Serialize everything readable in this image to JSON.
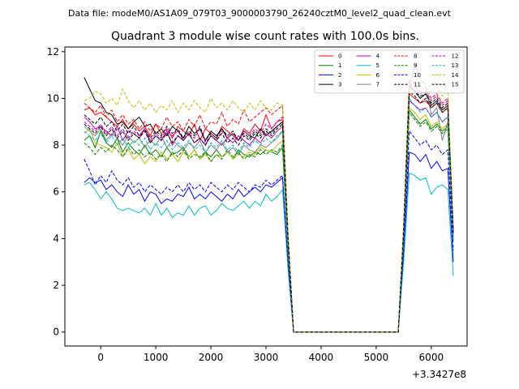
{
  "chart_data": {
    "type": "line",
    "suptitle": "Data file: modeM0/AS1A09_079T03_9000003790_26240cztM0_level2_quad_clean.evt",
    "title": "Quadrant 3 module wise count rates with 100.0s bins.",
    "xlabel": "",
    "ylabel": "",
    "x_offset_label": "+3.3427e8",
    "xlim": [
      -650,
      6650
    ],
    "ylim": [
      -0.6,
      12.2
    ],
    "xticks": [
      0,
      1000,
      2000,
      3000,
      4000,
      5000,
      6000
    ],
    "yticks": [
      0,
      2,
      4,
      6,
      8,
      10,
      12
    ],
    "legend_position": "top-right",
    "legend_columns": 4,
    "x": [
      -300,
      -200,
      -100,
      0,
      100,
      200,
      300,
      400,
      500,
      600,
      700,
      800,
      900,
      1000,
      1100,
      1200,
      1300,
      1400,
      1500,
      1600,
      1700,
      1800,
      1900,
      2000,
      2100,
      2200,
      2300,
      2400,
      2500,
      2600,
      2700,
      2800,
      2900,
      3000,
      3100,
      3200,
      3300,
      3400,
      3500,
      3600,
      3700,
      3800,
      3900,
      4000,
      4100,
      4200,
      4300,
      4400,
      4500,
      4600,
      4700,
      4800,
      4900,
      5000,
      5100,
      5200,
      5300,
      5400,
      5500,
      5600,
      5700,
      5800,
      5900,
      6000,
      6100,
      6200,
      6300,
      6400
    ],
    "series": [
      {
        "name": "0",
        "color": "#ff0000",
        "dash": "solid",
        "values": [
          9.5,
          9.6,
          9.3,
          9.4,
          9.2,
          9.0,
          8.8,
          9.1,
          8.7,
          8.9,
          8.6,
          8.8,
          8.4,
          8.9,
          8.5,
          8.7,
          8.3,
          8.8,
          8.6,
          8.4,
          8.9,
          8.2,
          8.7,
          8.5,
          8.3,
          8.8,
          8.6,
          8.4,
          8.2,
          8.7,
          8.5,
          8.9,
          8.6,
          9.3,
          8.7,
          9.0,
          9.1,
          4.0,
          0.0,
          0.0,
          0.0,
          0.0,
          0.0,
          0.0,
          0.0,
          0.0,
          0.0,
          0.0,
          0.0,
          0.0,
          0.0,
          0.0,
          0.0,
          0.0,
          0.0,
          0.0,
          0.0,
          0.0,
          4.5,
          10.2,
          10.0,
          9.8,
          9.9,
          9.6,
          9.8,
          9.4,
          9.6,
          4.3
        ]
      },
      {
        "name": "1",
        "color": "#008000",
        "dash": "solid",
        "values": [
          8.2,
          8.4,
          7.9,
          8.6,
          8.1,
          7.9,
          8.3,
          7.7,
          8.1,
          7.8,
          7.6,
          8.0,
          7.6,
          7.8,
          7.5,
          7.9,
          7.6,
          7.7,
          7.9,
          7.5,
          7.8,
          7.4,
          7.7,
          7.5,
          7.8,
          7.5,
          7.7,
          7.4,
          7.8,
          7.6,
          7.5,
          7.7,
          7.6,
          7.8,
          7.7,
          7.6,
          7.9,
          3.6,
          0.0,
          0.0,
          0.0,
          0.0,
          0.0,
          0.0,
          0.0,
          0.0,
          0.0,
          0.0,
          0.0,
          0.0,
          0.0,
          0.0,
          0.0,
          0.0,
          0.0,
          0.0,
          0.0,
          0.0,
          4.2,
          9.5,
          9.2,
          8.9,
          9.1,
          8.7,
          8.9,
          8.6,
          8.8,
          4.0
        ]
      },
      {
        "name": "2",
        "color": "#0000ff",
        "dash": "solid",
        "values": [
          6.4,
          6.6,
          6.4,
          6.5,
          6.1,
          6.3,
          6.0,
          5.8,
          6.3,
          5.9,
          6.1,
          5.6,
          6.0,
          5.9,
          5.5,
          5.7,
          5.6,
          5.9,
          5.8,
          6.2,
          5.7,
          5.9,
          5.7,
          6.0,
          5.8,
          5.6,
          5.9,
          5.7,
          6.1,
          5.8,
          6.0,
          6.2,
          6.0,
          6.3,
          6.2,
          6.4,
          6.6,
          2.9,
          0.0,
          0.0,
          0.0,
          0.0,
          0.0,
          0.0,
          0.0,
          0.0,
          0.0,
          0.0,
          0.0,
          0.0,
          0.0,
          0.0,
          0.0,
          0.0,
          0.0,
          0.0,
          0.0,
          0.0,
          3.4,
          7.7,
          7.6,
          7.3,
          7.6,
          7.0,
          7.3,
          6.9,
          7.0,
          3.0
        ]
      },
      {
        "name": "3",
        "color": "#000000",
        "dash": "solid",
        "values": [
          10.9,
          10.4,
          9.9,
          9.8,
          9.4,
          9.3,
          8.9,
          9.0,
          8.7,
          9.0,
          9.2,
          8.8,
          8.9,
          8.5,
          8.7,
          8.4,
          8.8,
          8.6,
          8.3,
          8.8,
          8.5,
          8.7,
          8.2,
          8.6,
          8.4,
          8.7,
          8.3,
          8.5,
          8.2,
          8.6,
          8.4,
          8.3,
          8.7,
          8.4,
          8.6,
          8.8,
          9.0,
          4.0,
          0.0,
          0.0,
          0.0,
          0.0,
          0.0,
          0.0,
          0.0,
          0.0,
          0.0,
          0.0,
          0.0,
          0.0,
          0.0,
          0.0,
          0.0,
          0.0,
          0.0,
          0.0,
          0.0,
          0.0,
          4.6,
          10.5,
          10.3,
          10.0,
          10.2,
          9.7,
          9.9,
          9.5,
          9.7,
          4.2
        ]
      },
      {
        "name": "4",
        "color": "#bf00bf",
        "dash": "solid",
        "values": [
          9.2,
          9.0,
          8.7,
          8.8,
          8.6,
          8.4,
          8.8,
          8.2,
          8.6,
          8.5,
          8.3,
          8.7,
          8.1,
          8.4,
          8.2,
          8.6,
          8.0,
          8.4,
          8.2,
          8.5,
          8.1,
          8.3,
          8.0,
          8.4,
          8.2,
          8.0,
          8.3,
          8.1,
          8.4,
          8.2,
          8.0,
          8.3,
          8.1,
          8.5,
          8.3,
          8.6,
          8.8,
          3.9,
          0.0,
          0.0,
          0.0,
          0.0,
          0.0,
          0.0,
          0.0,
          0.0,
          0.0,
          0.0,
          0.0,
          0.0,
          0.0,
          0.0,
          0.0,
          0.0,
          0.0,
          0.0,
          0.0,
          0.0,
          4.3,
          9.9,
          9.7,
          9.5,
          9.6,
          9.2,
          9.4,
          9.0,
          9.2,
          4.1
        ]
      },
      {
        "name": "5",
        "color": "#00bfbf",
        "dash": "solid",
        "values": [
          6.3,
          6.4,
          6.1,
          5.7,
          6.0,
          5.7,
          5.3,
          5.2,
          5.3,
          5.2,
          5.1,
          5.3,
          5.0,
          5.5,
          5.0,
          5.3,
          4.9,
          5.1,
          5.0,
          5.4,
          5.0,
          5.3,
          5.4,
          5.0,
          5.2,
          5.5,
          5.3,
          5.2,
          5.4,
          5.6,
          5.3,
          5.6,
          5.4,
          5.9,
          5.6,
          5.8,
          6.1,
          2.7,
          0.0,
          0.0,
          0.0,
          0.0,
          0.0,
          0.0,
          0.0,
          0.0,
          0.0,
          0.0,
          0.0,
          0.0,
          0.0,
          0.0,
          0.0,
          0.0,
          0.0,
          0.0,
          0.0,
          0.0,
          3.1,
          6.8,
          6.7,
          6.5,
          6.6,
          5.9,
          6.2,
          6.3,
          6.1,
          2.4
        ]
      },
      {
        "name": "6",
        "color": "#bfbf00",
        "dash": "solid",
        "values": [
          8.5,
          8.7,
          8.1,
          8.0,
          7.9,
          7.7,
          8.1,
          7.5,
          7.8,
          7.4,
          7.6,
          7.2,
          7.5,
          7.3,
          7.7,
          7.4,
          7.6,
          7.3,
          7.7,
          7.5,
          7.8,
          7.4,
          7.6,
          7.3,
          7.6,
          7.5,
          7.7,
          7.4,
          7.6,
          7.5,
          7.7,
          7.6,
          7.9,
          7.8,
          7.7,
          8.0,
          8.2,
          3.7,
          0.0,
          0.0,
          0.0,
          0.0,
          0.0,
          0.0,
          0.0,
          0.0,
          0.0,
          0.0,
          0.0,
          0.0,
          0.0,
          0.0,
          0.0,
          0.0,
          0.0,
          0.0,
          0.0,
          0.0,
          4.2,
          9.6,
          9.4,
          9.1,
          9.3,
          8.8,
          9.0,
          8.7,
          8.9,
          3.9
        ]
      },
      {
        "name": "7",
        "color": "#808080",
        "dash": "solid",
        "values": [
          8.8,
          8.6,
          8.4,
          8.7,
          8.2,
          8.5,
          8.3,
          8.0,
          8.4,
          8.1,
          8.3,
          7.9,
          8.2,
          8.0,
          8.4,
          7.9,
          8.2,
          8.0,
          7.8,
          8.1,
          7.9,
          8.2,
          7.7,
          8.0,
          7.8,
          8.1,
          7.7,
          7.9,
          7.6,
          8.0,
          7.8,
          7.7,
          8.0,
          7.9,
          8.1,
          8.3,
          8.6,
          3.8,
          0.0,
          0.0,
          0.0,
          0.0,
          0.0,
          0.0,
          0.0,
          0.0,
          0.0,
          0.0,
          0.0,
          0.0,
          0.0,
          0.0,
          0.0,
          0.0,
          0.0,
          0.0,
          0.0,
          0.0,
          4.4,
          10.4,
          11.5,
          10.8,
          10.6,
          9.3,
          9.6,
          8.2,
          9.0,
          4.1
        ]
      },
      {
        "name": "8",
        "color": "#ff0000",
        "dash": "dashed",
        "values": [
          9.8,
          9.6,
          9.4,
          9.7,
          9.2,
          9.5,
          9.0,
          9.3,
          8.9,
          9.1,
          8.7,
          9.0,
          8.6,
          8.9,
          8.7,
          9.2,
          8.8,
          9.0,
          8.6,
          9.1,
          8.8,
          9.3,
          8.7,
          9.0,
          8.9,
          9.4,
          8.8,
          9.1,
          8.9,
          9.5,
          9.0,
          9.2,
          9.4,
          9.6,
          9.3,
          9.5,
          9.7,
          4.3,
          0.0,
          0.0,
          0.0,
          0.0,
          0.0,
          0.0,
          0.0,
          0.0,
          0.0,
          0.0,
          0.0,
          0.0,
          0.0,
          0.0,
          0.0,
          0.0,
          0.0,
          0.0,
          0.0,
          0.0,
          4.7,
          10.8,
          10.6,
          10.3,
          10.5,
          10.0,
          10.2,
          9.8,
          10.0,
          4.4
        ]
      },
      {
        "name": "9",
        "color": "#008000",
        "dash": "dashed",
        "values": [
          8.1,
          7.9,
          7.6,
          7.9,
          7.7,
          8.0,
          7.8,
          7.5,
          7.9,
          7.6,
          7.8,
          7.5,
          7.7,
          7.4,
          7.6,
          7.3,
          7.7,
          7.5,
          7.8,
          7.4,
          7.6,
          7.5,
          7.7,
          7.3,
          7.6,
          7.4,
          7.8,
          7.5,
          7.7,
          7.4,
          7.6,
          7.5,
          7.8,
          7.6,
          7.8,
          7.7,
          8.0,
          3.6,
          0.0,
          0.0,
          0.0,
          0.0,
          0.0,
          0.0,
          0.0,
          0.0,
          0.0,
          0.0,
          0.0,
          0.0,
          0.0,
          0.0,
          0.0,
          0.0,
          0.0,
          0.0,
          0.0,
          0.0,
          4.1,
          9.4,
          9.1,
          8.8,
          9.0,
          8.6,
          8.8,
          8.5,
          8.7,
          3.9
        ]
      },
      {
        "name": "10",
        "color": "#0000ff",
        "dash": "dashed",
        "values": [
          7.4,
          6.9,
          6.3,
          6.7,
          6.4,
          6.9,
          6.5,
          6.3,
          6.6,
          6.2,
          6.4,
          6.0,
          6.3,
          6.1,
          5.9,
          6.2,
          6.0,
          6.3,
          6.0,
          6.4,
          6.1,
          6.3,
          6.0,
          6.4,
          6.2,
          6.0,
          6.3,
          6.1,
          6.4,
          6.2,
          6.0,
          6.3,
          6.2,
          6.5,
          6.3,
          6.5,
          6.7,
          3.0,
          0.0,
          0.0,
          0.0,
          0.0,
          0.0,
          0.0,
          0.0,
          0.0,
          0.0,
          0.0,
          0.0,
          0.0,
          0.0,
          0.0,
          0.0,
          0.0,
          0.0,
          0.0,
          0.0,
          0.0,
          3.6,
          8.6,
          8.3,
          8.0,
          8.2,
          7.8,
          8.0,
          7.6,
          7.8,
          3.5
        ]
      },
      {
        "name": "11",
        "color": "#000000",
        "dash": "dashed",
        "values": [
          9.3,
          9.1,
          8.9,
          9.2,
          8.8,
          9.0,
          8.6,
          8.9,
          8.5,
          8.8,
          8.4,
          8.7,
          8.3,
          8.6,
          8.4,
          8.8,
          8.5,
          8.7,
          8.3,
          8.6,
          8.4,
          8.8,
          8.2,
          8.5,
          8.3,
          8.7,
          8.4,
          8.6,
          8.2,
          8.5,
          8.3,
          8.6,
          8.4,
          8.7,
          8.5,
          8.8,
          9.0,
          4.0,
          0.0,
          0.0,
          0.0,
          0.0,
          0.0,
          0.0,
          0.0,
          0.0,
          0.0,
          0.0,
          0.0,
          0.0,
          0.0,
          0.0,
          0.0,
          0.0,
          0.0,
          0.0,
          0.0,
          0.0,
          4.5,
          10.6,
          10.3,
          10.1,
          10.2,
          9.8,
          10.0,
          9.6,
          9.8,
          4.3
        ]
      },
      {
        "name": "12",
        "color": "#bf00bf",
        "dash": "dashed",
        "values": [
          9.0,
          8.8,
          8.6,
          8.9,
          8.5,
          8.8,
          8.4,
          8.7,
          8.3,
          8.6,
          8.4,
          8.7,
          8.2,
          8.5,
          8.3,
          8.7,
          8.4,
          8.6,
          8.2,
          8.5,
          8.3,
          8.7,
          8.1,
          8.4,
          8.2,
          8.6,
          8.3,
          8.5,
          8.2,
          8.6,
          8.4,
          8.7,
          8.5,
          8.9,
          8.7,
          9.0,
          9.2,
          4.1,
          0.0,
          0.0,
          0.0,
          0.0,
          0.0,
          0.0,
          0.0,
          0.0,
          0.0,
          0.0,
          0.0,
          0.0,
          0.0,
          0.0,
          0.0,
          0.0,
          0.0,
          0.0,
          0.0,
          0.0,
          4.6,
          10.7,
          10.4,
          10.2,
          10.3,
          9.9,
          10.1,
          9.7,
          9.9,
          4.3
        ]
      },
      {
        "name": "13",
        "color": "#00bfbf",
        "dash": "dashed",
        "values": [
          8.6,
          8.4,
          8.2,
          8.5,
          8.1,
          8.4,
          8.0,
          8.3,
          7.9,
          8.2,
          8.0,
          8.3,
          7.8,
          8.1,
          7.9,
          8.2,
          7.8,
          8.1,
          7.9,
          8.2,
          7.8,
          8.0,
          7.7,
          8.1,
          7.9,
          8.2,
          7.8,
          8.0,
          7.7,
          8.1,
          7.9,
          8.2,
          8.0,
          8.3,
          8.1,
          8.4,
          8.6,
          3.8,
          0.0,
          0.0,
          0.0,
          0.0,
          0.0,
          0.0,
          0.0,
          0.0,
          0.0,
          0.0,
          0.0,
          0.0,
          0.0,
          0.0,
          0.0,
          0.0,
          0.0,
          0.0,
          0.0,
          0.0,
          4.3,
          10.0,
          9.7,
          9.4,
          9.6,
          9.2,
          9.4,
          9.0,
          9.2,
          4.0
        ]
      },
      {
        "name": "14",
        "color": "#bfbf00",
        "dash": "dashed",
        "values": [
          9.9,
          10.0,
          10.3,
          10.2,
          9.8,
          10.0,
          9.7,
          10.4,
          9.9,
          9.6,
          9.9,
          9.5,
          9.8,
          9.4,
          9.7,
          9.5,
          9.9,
          9.4,
          9.8,
          9.5,
          9.9,
          9.6,
          9.4,
          10.0,
          9.6,
          9.8,
          9.5,
          9.9,
          9.6,
          9.4,
          9.8,
          9.5,
          9.9,
          9.6,
          9.5,
          9.8,
          9.7,
          4.3,
          0.0,
          0.0,
          0.0,
          0.0,
          0.0,
          0.0,
          0.0,
          0.0,
          0.0,
          0.0,
          0.0,
          0.0,
          0.0,
          0.0,
          0.0,
          0.0,
          0.0,
          0.0,
          0.0,
          0.0,
          4.8,
          11.0,
          10.9,
          10.6,
          10.8,
          10.3,
          10.5,
          10.1,
          10.3,
          4.5
        ]
      },
      {
        "name": "15",
        "color": "#000000",
        "dash": "dashed",
        "values": [
          8.9,
          8.7,
          8.5,
          8.8,
          8.4,
          8.7,
          8.3,
          8.6,
          8.2,
          8.5,
          8.3,
          8.6,
          8.1,
          8.4,
          8.2,
          8.5,
          8.1,
          8.4,
          8.2,
          8.5,
          8.1,
          8.3,
          8.0,
          8.4,
          8.2,
          8.5,
          8.1,
          8.3,
          8.0,
          8.4,
          8.2,
          8.5,
          8.3,
          8.6,
          8.4,
          8.7,
          8.9,
          3.9,
          0.0,
          0.0,
          0.0,
          0.0,
          0.0,
          0.0,
          0.0,
          0.0,
          0.0,
          0.0,
          0.0,
          0.0,
          0.0,
          0.0,
          0.0,
          0.0,
          0.0,
          0.0,
          0.0,
          0.0,
          4.4,
          10.3,
          10.1,
          9.8,
          10.0,
          9.6,
          9.8,
          9.4,
          9.6,
          4.2
        ]
      }
    ]
  }
}
